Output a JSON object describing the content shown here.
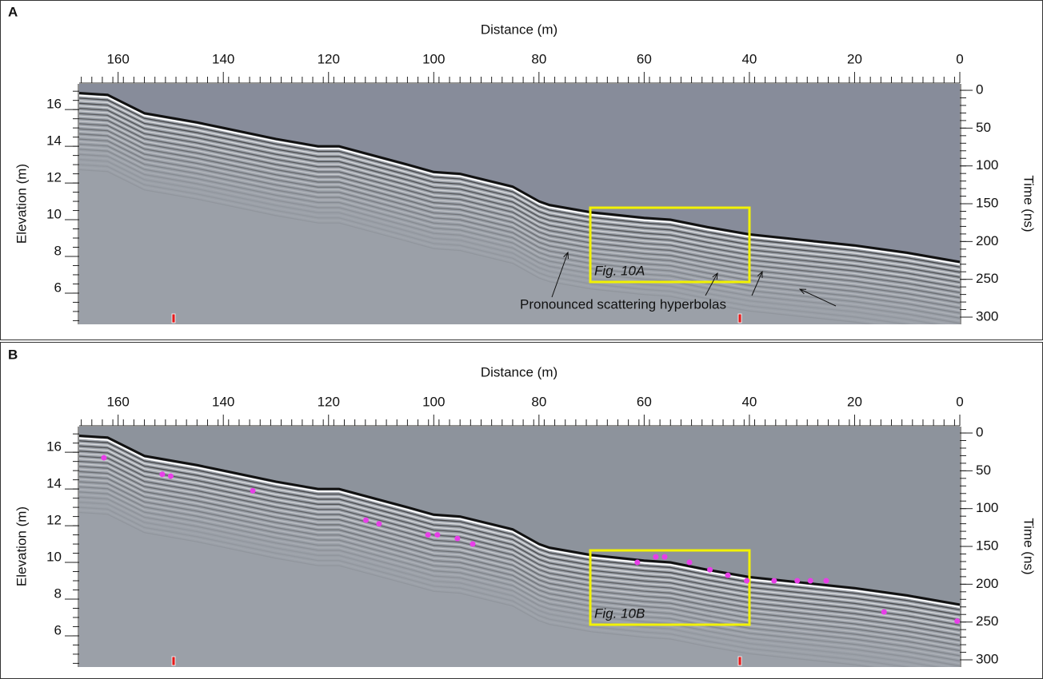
{
  "chart_data": [
    {
      "type": "radargram",
      "panel_label": "A",
      "x_label": "Distance (m)",
      "y_label": "Elevation (m)",
      "y2_label": "Time (ns)",
      "xlim": [
        167.4,
        0
      ],
      "xticks": [
        160,
        140,
        120,
        100,
        80,
        60,
        40,
        20,
        0
      ],
      "ylim": [
        4.3,
        17.4
      ],
      "yticks": [
        6,
        8,
        10,
        12,
        14,
        16
      ],
      "y2lim": [
        309.5,
        -8.5
      ],
      "y2ticks": [
        0,
        50,
        100,
        150,
        200,
        250,
        300
      ],
      "surface": {
        "color": "#111111",
        "x": [
          167.4,
          162,
          155,
          145,
          140,
          130,
          122,
          118,
          105,
          100,
          95,
          85,
          80,
          78,
          70,
          60,
          55,
          48,
          40,
          30,
          20,
          10,
          0
        ],
        "values": [
          16.9,
          16.8,
          15.8,
          15.3,
          15.0,
          14.4,
          14.0,
          14.0,
          13.0,
          12.6,
          12.5,
          11.8,
          11.0,
          10.8,
          10.4,
          10.1,
          10.0,
          9.6,
          9.2,
          8.9,
          8.6,
          8.2,
          7.7
        ]
      },
      "box_label": "Fig. 10A",
      "annotation": "Pronounced scattering hyperbolas"
    },
    {
      "type": "radargram",
      "panel_label": "B",
      "x_label": "Distance (m)",
      "y_label": "Elevation (m)",
      "y2_label": "Time (ns)",
      "xlim": [
        167.4,
        0
      ],
      "xticks": [
        160,
        140,
        120,
        100,
        80,
        60,
        40,
        20,
        0
      ],
      "ylim": [
        4.3,
        17.4
      ],
      "yticks": [
        6,
        8,
        10,
        12,
        14,
        16
      ],
      "y2lim": [
        309.5,
        -8.5
      ],
      "y2ticks": [
        0,
        50,
        100,
        150,
        200,
        250,
        300
      ],
      "surface": {
        "color": "#111111",
        "x": [
          167.4,
          162,
          155,
          145,
          140,
          130,
          122,
          118,
          105,
          100,
          95,
          85,
          80,
          78,
          70,
          60,
          55,
          48,
          40,
          30,
          20,
          10,
          0
        ],
        "values": [
          16.9,
          16.8,
          15.8,
          15.3,
          15.0,
          14.4,
          14.0,
          14.0,
          13.0,
          12.6,
          12.5,
          11.8,
          11.0,
          10.8,
          10.4,
          10.1,
          10.0,
          9.6,
          9.2,
          8.9,
          8.6,
          8.2,
          7.7
        ]
      },
      "box_label": "Fig. 10B",
      "series": [
        {
          "color": "#e83ee8",
          "x": [
            162.7,
            151.6,
            150.0,
            134.4,
            112.9,
            110.4,
            101.1,
            99.3,
            95.5,
            92.6,
            61.3,
            57.8,
            56.1,
            51.4,
            47.5,
            44.1,
            40.5,
            35.3,
            30.9,
            28.4,
            25.4,
            14.4,
            0.5
          ],
          "values": [
            15.7,
            14.8,
            14.7,
            13.9,
            12.3,
            12.1,
            11.5,
            11.5,
            11.3,
            11.0,
            10.0,
            10.3,
            10.3,
            10.0,
            9.6,
            9.3,
            9.0,
            9.0,
            9.0,
            9.0,
            9.0,
            7.3,
            6.8
          ]
        }
      ]
    }
  ]
}
